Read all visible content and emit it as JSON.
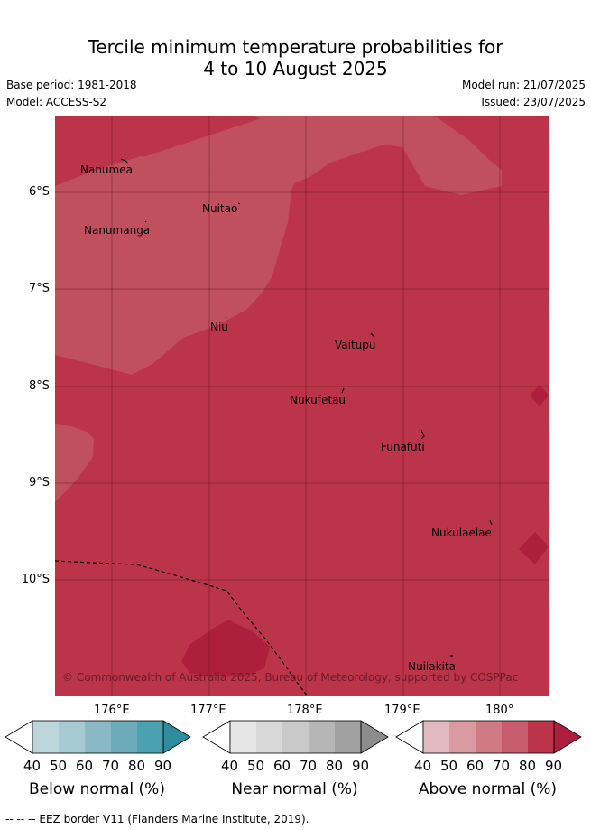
{
  "title": {
    "line1": "Tercile minimum temperature probabilities for",
    "line2": "4 to 10 August 2025"
  },
  "meta": {
    "base_period": "Base period: 1981-2018",
    "model": "Model: ACCESS-S2",
    "model_run": "Model run: 21/07/2025",
    "issued": "Issued: 23/07/2025"
  },
  "map": {
    "lat_labels": [
      "6°S",
      "7°S",
      "8°S",
      "9°S",
      "10°S"
    ],
    "lon_labels": [
      "176°E",
      "177°E",
      "178°E",
      "179°E",
      "180°"
    ],
    "places": [
      "Nanumea",
      "Nuitao",
      "Nanumanga",
      "Niu",
      "Vaitupu",
      "Nukufetau",
      "Funafuti",
      "Nukulaelae",
      "Nuilakita"
    ],
    "copyright": "© Commonwealth of Australia 2025, Bureau of Meteorology, supported by COSPPac",
    "colors": {
      "above_70": "#c1505f",
      "above_80": "#bc3449",
      "above_90": "#ad1f3d"
    }
  },
  "colorbars": [
    {
      "label": "Below normal (%)",
      "ticks": [
        "40",
        "50",
        "60",
        "70",
        "80",
        "90"
      ],
      "colors": [
        "#ffffff",
        "#bdd6dc",
        "#a5cad1",
        "#89b9c5",
        "#6dabbb",
        "#4aa2b1",
        "#2e8c9f"
      ]
    },
    {
      "label": "Near normal (%)",
      "ticks": [
        "40",
        "50",
        "60",
        "70",
        "80",
        "90"
      ],
      "colors": [
        "#ffffff",
        "#e6e6e6",
        "#d9d9d9",
        "#c9c9c9",
        "#b6b6b6",
        "#a1a1a1",
        "#8c8c8c"
      ]
    },
    {
      "label": "Above normal (%)",
      "ticks": [
        "40",
        "50",
        "60",
        "70",
        "80",
        "90"
      ],
      "colors": [
        "#ffffff",
        "#e3b9c0",
        "#d99aa2",
        "#d07a84",
        "#c75d6c",
        "#bc3449",
        "#ad1f3d"
      ]
    }
  ],
  "footer": "--  --  -- EEZ border V11 (Flanders Marine Institute, 2019)."
}
